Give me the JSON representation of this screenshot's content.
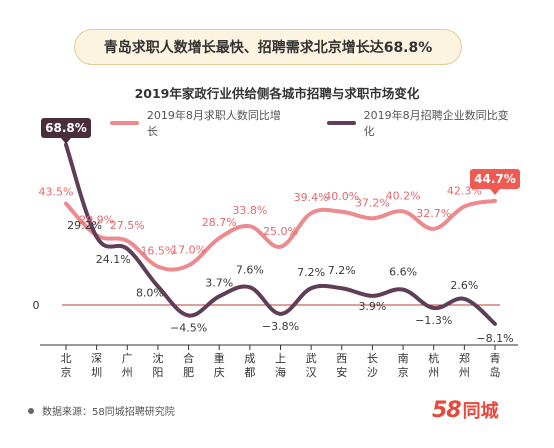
{
  "headline": "青岛求职人数增长最快、招聘需求北京增长达68.8%",
  "source": "数据来源：58同城招聘研究院",
  "logo": {
    "number": "58",
    "text": "同城"
  },
  "colors": {
    "seeker": "#ec8a8e",
    "employer": "#5f3e58",
    "zero_line": "#b8413a"
  },
  "chart_data": {
    "type": "line",
    "title": "2019年家政行业供给侧各城市招聘与求职市场变化",
    "categories": [
      "北京",
      "深圳",
      "广州",
      "沈阳",
      "合肥",
      "重庆",
      "成都",
      "上海",
      "武汉",
      "西安",
      "长沙",
      "南京",
      "杭州",
      "郑州",
      "青岛"
    ],
    "y_axis_labels": [
      "0"
    ],
    "series": [
      {
        "name": "2019年8月求职人数同比增长",
        "values": [
          43.5,
          29.9,
          27.5,
          16.5,
          17.0,
          28.7,
          33.8,
          25.0,
          39.4,
          40.0,
          37.2,
          40.2,
          32.7,
          42.3,
          44.7
        ],
        "labels": [
          "43.5%",
          "29.9%",
          "27.5%",
          "16.5%",
          "17.0%",
          "28.7%",
          "33.8%",
          "25.0%",
          "39.4%",
          "40.0%",
          "37.2%",
          "40.2%",
          "32.7%",
          "42.3%",
          "44.7%"
        ]
      },
      {
        "name": "2019年8月招聘企业数同比变化",
        "values": [
          68.8,
          29.2,
          24.1,
          8.0,
          -4.5,
          3.7,
          7.6,
          -3.8,
          7.2,
          7.2,
          3.9,
          6.6,
          -1.3,
          2.6,
          -8.1
        ],
        "labels": [
          "68.8%",
          "29.2%",
          "24.1%",
          "8.0%",
          "−4.5%",
          "3.7%",
          "7.6%",
          "−3.8%",
          "7.2%",
          "7.2%",
          "3.9%",
          "6.6%",
          "−1.3%",
          "2.6%",
          "−8.1%"
        ]
      }
    ]
  }
}
